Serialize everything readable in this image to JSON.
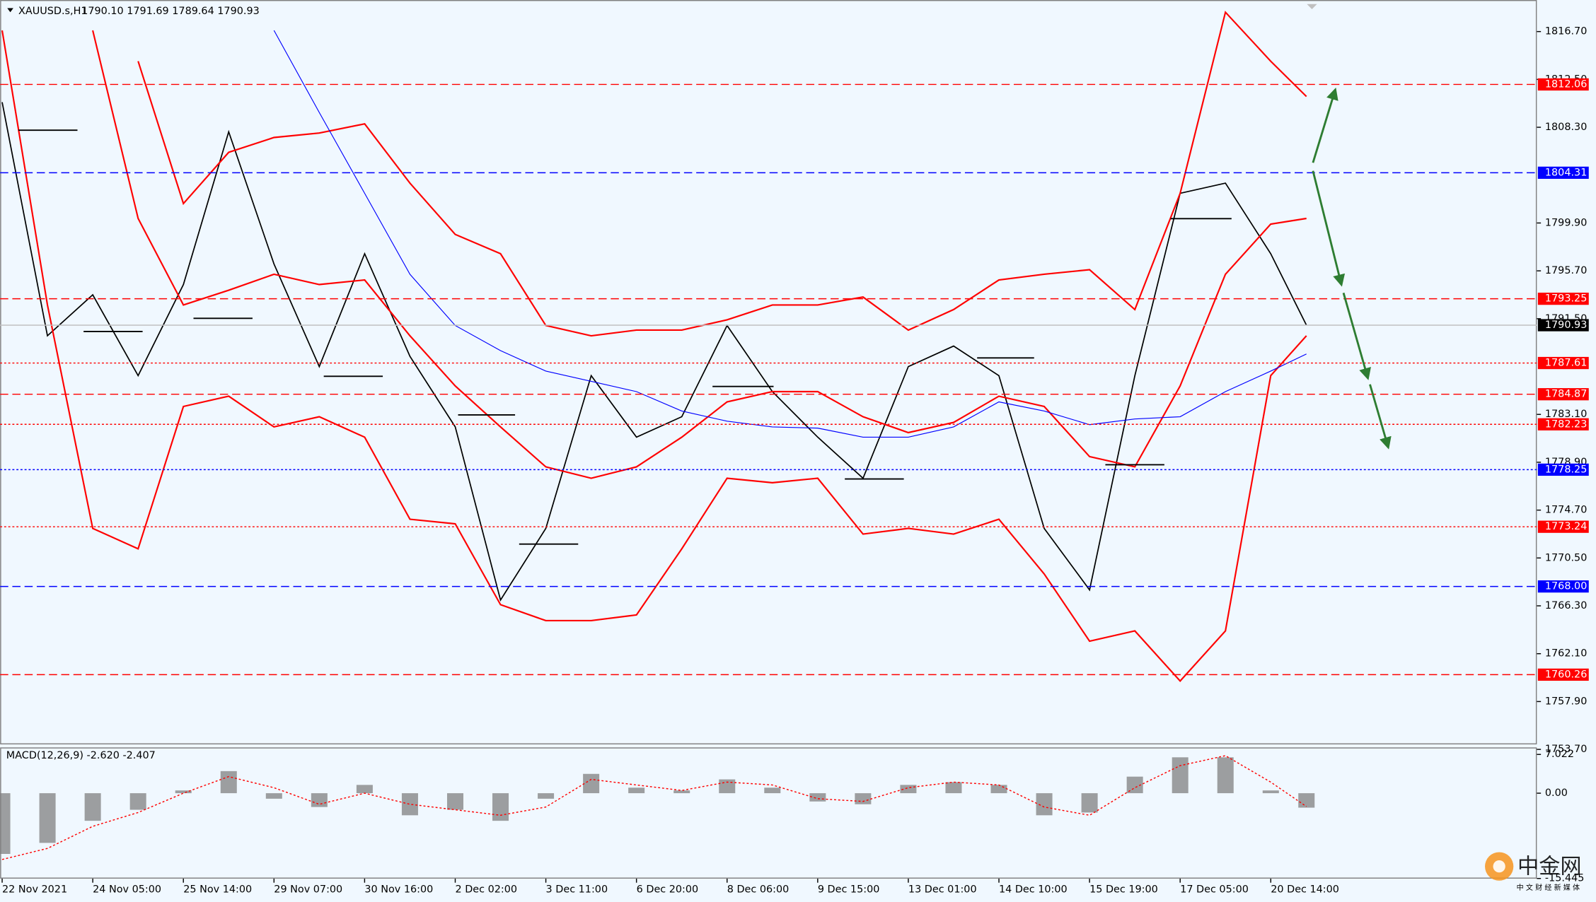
{
  "header": {
    "symbol": "XAUUSD.s,H1",
    "ohlc": "1790.10 1791.69 1789.64 1790.93"
  },
  "chart_data": [
    {
      "type": "line",
      "x": [
        0,
        16.5,
        33,
        49.5,
        66,
        82.5,
        99,
        115.5,
        132,
        148.5,
        165,
        181.5,
        198,
        214.5,
        231,
        247.5,
        264,
        280.5,
        297,
        313.5,
        330,
        346.5,
        363,
        379.5,
        396,
        412.5,
        429,
        445.5,
        462,
        475
      ],
      "xlim": [
        -0.74,
        558.9
      ],
      "xticks": [
        {
          "value": 0,
          "label": "22 Nov 2021"
        },
        {
          "value": 33,
          "label": "24 Nov 05:00"
        },
        {
          "value": 66,
          "label": "25 Nov 14:00"
        },
        {
          "value": 99,
          "label": "29 Nov 07:00"
        },
        {
          "value": 132,
          "label": "30 Nov 16:00"
        },
        {
          "value": 165,
          "label": "2 Dec 02:00"
        },
        {
          "value": 198,
          "label": "3 Dec 11:00"
        },
        {
          "value": 231,
          "label": "6 Dec 20:00"
        },
        {
          "value": 264,
          "label": "8 Dec 06:00"
        },
        {
          "value": 297,
          "label": "9 Dec 15:00"
        },
        {
          "value": 330,
          "label": "13 Dec 01:00"
        },
        {
          "value": 363,
          "label": "14 Dec 10:00"
        },
        {
          "value": 396,
          "label": "15 Dec 19:00"
        },
        {
          "value": 429,
          "label": "17 Dec 05:00"
        },
        {
          "value": 462,
          "label": "20 Dec 14:00"
        }
      ],
      "ylim": [
        1754.14,
        1819.47
      ],
      "yticks": [
        {
          "value": 1816.7,
          "label": "1816.70"
        },
        {
          "value": 1812.5,
          "label": "1812.50"
        },
        {
          "value": 1808.3,
          "label": "1808.30"
        },
        {
          "value": 1799.9,
          "label": "1799.90"
        },
        {
          "value": 1795.7,
          "label": "1795.70"
        },
        {
          "value": 1791.5,
          "label": "1791.50"
        },
        {
          "value": 1783.1,
          "label": "1783.10"
        },
        {
          "value": 1778.9,
          "label": "1778.90"
        },
        {
          "value": 1774.7,
          "label": "1774.70"
        },
        {
          "value": 1770.5,
          "label": "1770.50"
        },
        {
          "value": 1766.3,
          "label": "1766.30"
        },
        {
          "value": 1762.1,
          "label": "1762.10"
        },
        {
          "value": 1757.9,
          "label": "1757.90"
        },
        {
          "value": 1753.7,
          "label": "1753.70"
        }
      ],
      "series": [
        {
          "color": "#000000",
          "values": [
            1810.5,
            1790.0,
            1793.6,
            1786.5,
            1794.5,
            1807.9,
            1796.3,
            1787.3,
            1797.2,
            1788.2,
            1782.0,
            1766.8,
            1773.1,
            1786.5,
            1781.1,
            1782.9,
            1790.9,
            1785.1,
            1781.1,
            1777.5,
            1787.3,
            1789.1,
            1786.5,
            1773.1,
            1767.7,
            1786.5,
            1802.5,
            1803.4,
            1797.2,
            1790.93
          ]
        },
        {
          "color": "#ff0000",
          "values": [
            null,
            null,
            null,
            1814.1,
            1801.6,
            1806.1,
            1807.4,
            1807.8,
            1808.6,
            1803.4,
            1798.9,
            1797.2,
            1790.9,
            1790.0,
            1790.5,
            1790.5,
            1791.4,
            1792.7,
            1792.7,
            1793.4,
            1790.5,
            1792.3,
            1794.9,
            1795.4,
            1795.8,
            1792.3,
            1802.5,
            1818.4,
            1814.1,
            1811.0
          ]
        },
        {
          "color": "#ff0000",
          "values": [
            null,
            null,
            1816.8,
            1800.3,
            1792.7,
            1794.0,
            1795.4,
            1794.5,
            1794.9,
            1790.0,
            1785.6,
            1782.0,
            1778.5,
            1777.5,
            1778.5,
            1781.1,
            1784.2,
            1785.1,
            1785.1,
            1782.9,
            1781.5,
            1782.4,
            1784.7,
            1783.8,
            1779.4,
            1778.5,
            1785.6,
            1795.4,
            1799.8,
            1800.3
          ]
        },
        {
          "color": "#ff0000",
          "values": [
            1816.8,
            1792.7,
            1773.1,
            1771.3,
            1783.8,
            1784.7,
            1782.0,
            1782.9,
            1781.1,
            1773.9,
            1773.5,
            1766.4,
            1765.0,
            1765.0,
            1765.5,
            1771.3,
            1777.5,
            1777.1,
            1777.5,
            1772.6,
            1773.1,
            1772.6,
            1773.9,
            1769.1,
            1763.2,
            1764.1,
            1759.7,
            1764.1,
            1786.5,
            1790.0
          ]
        },
        {
          "color": "#0000ff",
          "values": [
            null,
            null,
            null,
            null,
            null,
            null,
            1816.8,
            1809.6,
            1802.5,
            1795.4,
            1790.9,
            1788.7,
            1786.9,
            1786.0,
            1785.1,
            1783.4,
            1782.5,
            1782.0,
            1781.9,
            1781.1,
            1781.1,
            1782.0,
            1784.2,
            1783.4,
            1782.2,
            1782.7,
            1782.9,
            1785.1,
            1786.9,
            1788.4
          ]
        }
      ],
      "levels": [
        {
          "value": 1812.06,
          "label": "1812.06",
          "color": "#ff0000",
          "style": "dashed"
        },
        {
          "value": 1804.31,
          "label": "1804.31",
          "color": "#0000ff",
          "style": "dashed"
        },
        {
          "value": 1793.25,
          "label": "1793.25",
          "color": "#ff0000",
          "style": "dashed"
        },
        {
          "value": 1787.61,
          "label": "1787.61",
          "color": "#ff0000",
          "style": "dotted"
        },
        {
          "value": 1784.87,
          "label": "1784.87",
          "color": "#ff0000",
          "style": "dashed"
        },
        {
          "value": 1782.23,
          "label": "1782.23",
          "color": "#ff0000",
          "style": "dotted"
        },
        {
          "value": 1778.25,
          "label": "1778.25",
          "color": "#0000ff",
          "style": "dotted"
        },
        {
          "value": 1773.24,
          "label": "1773.24",
          "color": "#ff0000",
          "style": "dotted"
        },
        {
          "value": 1768.0,
          "label": "1768.00",
          "color": "#0000ff",
          "style": "dashed"
        },
        {
          "value": 1760.26,
          "label": "1760.26",
          "color": "#ff0000",
          "style": "dashed"
        }
      ],
      "price": {
        "value": 1790.93,
        "label": "1790.93",
        "color": "#000000"
      }
    },
    {
      "type": "bar",
      "label": "MACD(12,26,9) -2.620 -2.407",
      "x": [
        0,
        16.5,
        33,
        49.5,
        66,
        82.5,
        99,
        115.5,
        132,
        148.5,
        165,
        181.5,
        198,
        214.5,
        231,
        247.5,
        264,
        280.5,
        297,
        313.5,
        330,
        346.5,
        363,
        379.5,
        396,
        412.5,
        429,
        445.5,
        462,
        475
      ],
      "xlim": [
        -0.74,
        558.9
      ],
      "ylim": [
        -15.84,
        8.29
      ],
      "yticks": [
        7.022,
        {
          "value": 0,
          "label": "0.00"
        },
        -15.445
      ],
      "series": [
        {
          "color": "#808080",
          "values": [
            -11,
            -9,
            -5,
            -3,
            0.5,
            4,
            -1,
            -2.5,
            1.5,
            -4,
            -3,
            -5,
            -1,
            3.5,
            1,
            0.5,
            2.5,
            1,
            -1.5,
            -2,
            1.5,
            2,
            1.5,
            -4,
            -3.5,
            3,
            6.5,
            6.5,
            0.5,
            -2.62
          ]
        },
        {
          "color": "#ff0000",
          "values": [
            -12,
            -10,
            -6,
            -3.5,
            0,
            3,
            1,
            -2,
            0,
            -2,
            -3,
            -4,
            -2.5,
            2.5,
            1.5,
            0.5,
            2,
            1.5,
            -1,
            -1.5,
            1,
            2,
            1.5,
            -2.5,
            -4,
            1,
            5,
            6.8,
            2,
            -2.407
          ]
        }
      ]
    }
  ],
  "watermark": {
    "logo": "中金网",
    "tagline": "中 文 财 经 新 媒 体"
  }
}
